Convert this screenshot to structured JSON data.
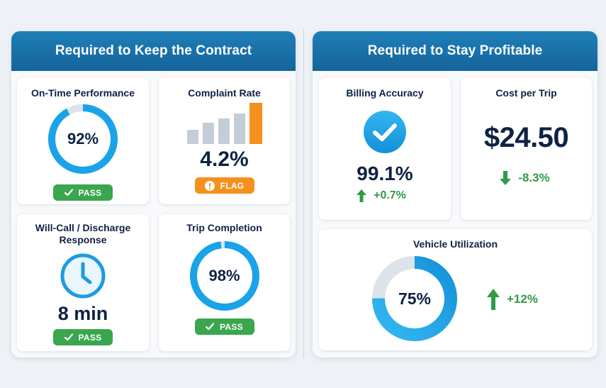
{
  "left_panel": {
    "title": "Required to Keep the Contract",
    "on_time": {
      "title": "On-Time Performance",
      "value": "92%",
      "progress": 0.92,
      "status": "PASS"
    },
    "complaint": {
      "title": "Complaint Rate",
      "value": "4.2%",
      "status": "FLAG",
      "bar_levels": [
        0.35,
        0.52,
        0.62,
        0.74,
        1.0
      ]
    },
    "will_call": {
      "title": "Will-Call / Discharge Response",
      "value": "8 min",
      "status": "PASS"
    },
    "trip_completion": {
      "title": "Trip Completion",
      "value": "98%",
      "progress": 0.98,
      "status": "PASS"
    }
  },
  "right_panel": {
    "title": "Required to Stay Profitable",
    "billing": {
      "title": "Billing Accuracy",
      "value": "99.1%",
      "delta": "+0.7%",
      "delta_direction": "up"
    },
    "cost_per_trip": {
      "title": "Cost per Trip",
      "value": "$24.50",
      "delta": "-8.3%",
      "delta_direction": "down"
    },
    "utilization": {
      "title": "Vehicle Utilization",
      "value": "75%",
      "progress": 0.75,
      "delta": "+12%",
      "delta_direction": "up"
    }
  },
  "colors": {
    "header": "#1a73aa",
    "ring": "#1aa3e8",
    "ring_track": "#dce3ea",
    "pass": "#3aa64e",
    "flag": "#f5901e",
    "positive": "#2f9a47",
    "bars": "#c3cdd8",
    "bar_highlight": "#f5901e"
  },
  "icons": {
    "pass_badge": "check-icon",
    "flag_badge": "exclamation-icon",
    "will_call": "clock-icon",
    "billing": "check-circle-icon",
    "delta_up": "arrow-up-icon",
    "delta_down": "arrow-down-icon"
  }
}
